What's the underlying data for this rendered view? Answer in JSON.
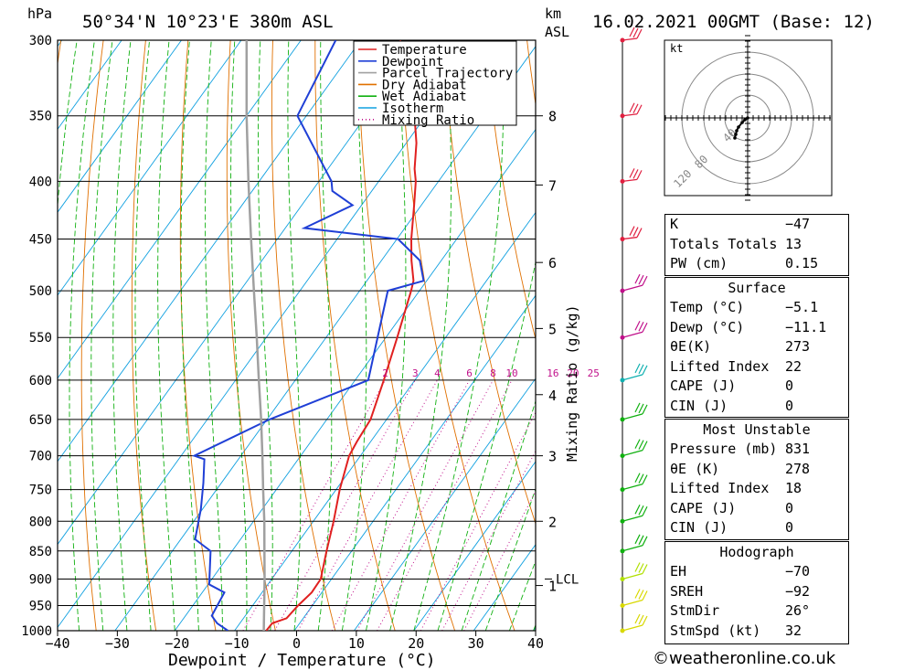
{
  "header": {
    "hpa_label": "hPa",
    "location": "50°34'N  10°23'E  380m  ASL",
    "km_label": "km",
    "asl_label": "ASL",
    "datetime": "16.02.2021  00GMT  (Base: 12)"
  },
  "chart_data": {
    "type": "line",
    "subtype": "skew-T log-p diagram",
    "xlabel": "Dewpoint / Temperature (°C)",
    "ylabel_left": "hPa",
    "ylabel_right": "Mixing Ratio (g/kg)",
    "x_ticks": [
      "−40",
      "−30",
      "−20",
      "−10",
      "0",
      "10",
      "20",
      "30",
      "40"
    ],
    "x_range": [
      -40,
      40
    ],
    "p_range": [
      1000,
      300
    ],
    "pressure_levels": [
      300,
      350,
      400,
      450,
      500,
      550,
      600,
      650,
      700,
      750,
      800,
      850,
      900,
      950,
      1000
    ],
    "km_ticks": [
      {
        "label": "8",
        "p": 350
      },
      {
        "label": "7",
        "p": 403
      },
      {
        "label": "6",
        "p": 472
      },
      {
        "label": "5",
        "p": 540
      },
      {
        "label": "4",
        "p": 618
      },
      {
        "label": "3",
        "p": 700
      },
      {
        "label": "2",
        "p": 800
      },
      {
        "label": "1",
        "p": 912
      }
    ],
    "lcl_label": "LCL",
    "lcl_pressure": 900,
    "mixing_ratio_labels": [
      "2",
      "3",
      "4",
      "6",
      "8",
      "10",
      "16",
      "20",
      "25"
    ],
    "legend": {
      "position": "top-center",
      "entries": [
        {
          "name": "Temperature",
          "color": "#e02020"
        },
        {
          "name": "Dewpoint",
          "color": "#1f3fd6"
        },
        {
          "name": "Parcel Trajectory",
          "color": "#a0a0a0"
        },
        {
          "name": "Dry Adiabat",
          "color": "#e07000"
        },
        {
          "name": "Wet Adiabat",
          "color": "#10b010"
        },
        {
          "name": "Isotherm",
          "color": "#10a0e0"
        },
        {
          "name": "Mixing Ratio",
          "color": "#c0108a"
        }
      ]
    },
    "series": [
      {
        "name": "Temperature",
        "color": "#e02020",
        "points": [
          [
            1000,
            -4.7
          ],
          [
            985,
            -4.6
          ],
          [
            975,
            -2.8
          ],
          [
            950,
            -2.4
          ],
          [
            925,
            -1.7
          ],
          [
            900,
            -1.8
          ],
          [
            850,
            -4.2
          ],
          [
            800,
            -6.6
          ],
          [
            750,
            -9.4
          ],
          [
            700,
            -11.9
          ],
          [
            680,
            -12.3
          ],
          [
            650,
            -12.7
          ],
          [
            600,
            -15.2
          ],
          [
            550,
            -18.1
          ],
          [
            500,
            -21.4
          ],
          [
            490,
            -22.2
          ],
          [
            470,
            -25.0
          ],
          [
            450,
            -27.6
          ],
          [
            420,
            -31.2
          ],
          [
            400,
            -33.8
          ],
          [
            390,
            -35.5
          ],
          [
            370,
            -38.3
          ],
          [
            350,
            -41.9
          ],
          [
            330,
            -46.2
          ],
          [
            300,
            -53.4
          ]
        ]
      },
      {
        "name": "Dewpoint",
        "color": "#1f3fd6",
        "points": [
          [
            1000,
            -11.1
          ],
          [
            985,
            -13.8
          ],
          [
            970,
            -15.6
          ],
          [
            925,
            -16.3
          ],
          [
            910,
            -19.8
          ],
          [
            850,
            -23.6
          ],
          [
            830,
            -27.6
          ],
          [
            780,
            -30.3
          ],
          [
            740,
            -33.0
          ],
          [
            705,
            -35.7
          ],
          [
            700,
            -37.8
          ],
          [
            650,
            -29.6
          ],
          [
            600,
            -17.8
          ],
          [
            500,
            -25.3
          ],
          [
            490,
            -20.5
          ],
          [
            470,
            -23.6
          ],
          [
            450,
            -29.8
          ],
          [
            440,
            -46.8
          ],
          [
            420,
            -41.5
          ],
          [
            408,
            -46.6
          ],
          [
            400,
            -47.9
          ],
          [
            350,
            -61.5
          ],
          [
            300,
            -64.2
          ]
        ]
      },
      {
        "name": "Parcel Trajectory",
        "color": "#a0a0a0",
        "points": [
          [
            1000,
            -5.1
          ],
          [
            900,
            -11.2
          ],
          [
            850,
            -14.6
          ],
          [
            800,
            -18.2
          ],
          [
            750,
            -22.2
          ],
          [
            700,
            -26.4
          ],
          [
            650,
            -31.0
          ],
          [
            600,
            -36.1
          ],
          [
            550,
            -41.6
          ],
          [
            500,
            -47.7
          ],
          [
            450,
            -54.4
          ],
          [
            400,
            -61.8
          ],
          [
            350,
            -70.0
          ],
          [
            300,
            -79.1
          ]
        ]
      }
    ],
    "wind_barbs": [
      {
        "p": 1000,
        "color": "#d8d800"
      },
      {
        "p": 950,
        "color": "#d8d800"
      },
      {
        "p": 900,
        "color": "#b0e000"
      },
      {
        "p": 850,
        "color": "#10b010"
      },
      {
        "p": 800,
        "color": "#10b010"
      },
      {
        "p": 750,
        "color": "#10b010"
      },
      {
        "p": 700,
        "color": "#10b010"
      },
      {
        "p": 650,
        "color": "#10b010"
      },
      {
        "p": 600,
        "color": "#10b0b0"
      },
      {
        "p": 550,
        "color": "#c0108a"
      },
      {
        "p": 500,
        "color": "#c0108a"
      },
      {
        "p": 450,
        "color": "#e02040"
      },
      {
        "p": 400,
        "color": "#e02040"
      },
      {
        "p": 350,
        "color": "#e02040"
      },
      {
        "p": 300,
        "color": "#e02040"
      }
    ],
    "hodograph": {
      "unit_label": "kt",
      "ring_labels": [
        "40",
        "80",
        "120"
      ],
      "trace": [
        [
          0,
          0
        ],
        [
          -3,
          2
        ],
        [
          -6,
          5
        ],
        [
          -10,
          10
        ],
        [
          -12,
          14
        ],
        [
          -13,
          18
        ],
        [
          -14,
          22
        ]
      ]
    }
  },
  "indices": {
    "top": [
      {
        "label": "K",
        "value": "−47"
      },
      {
        "label": "Totals Totals",
        "value": "13"
      },
      {
        "label": "PW (cm)",
        "value": "0.15"
      }
    ],
    "surface": {
      "title": "Surface",
      "rows": [
        {
          "label": "Temp (°C)",
          "value": "−5.1"
        },
        {
          "label": "Dewp (°C)",
          "value": "−11.1"
        },
        {
          "label": "θE(K)",
          "value": "273"
        },
        {
          "label": "Lifted Index",
          "value": "22"
        },
        {
          "label": "CAPE (J)",
          "value": "0"
        },
        {
          "label": "CIN (J)",
          "value": "0"
        }
      ]
    },
    "most_unstable": {
      "title": "Most Unstable",
      "rows": [
        {
          "label": "Pressure (mb)",
          "value": "831"
        },
        {
          "label": "θE (K)",
          "value": "278"
        },
        {
          "label": "Lifted Index",
          "value": "18"
        },
        {
          "label": "CAPE (J)",
          "value": "0"
        },
        {
          "label": "CIN (J)",
          "value": "0"
        }
      ]
    },
    "hodograph": {
      "title": "Hodograph",
      "rows": [
        {
          "label": "EH",
          "value": "−70"
        },
        {
          "label": "SREH",
          "value": "−92"
        },
        {
          "label": "StmDir",
          "value": "26°"
        },
        {
          "label": "StmSpd (kt)",
          "value": "32"
        }
      ]
    }
  },
  "footer": {
    "credit": "©weatheronline.co.uk"
  }
}
